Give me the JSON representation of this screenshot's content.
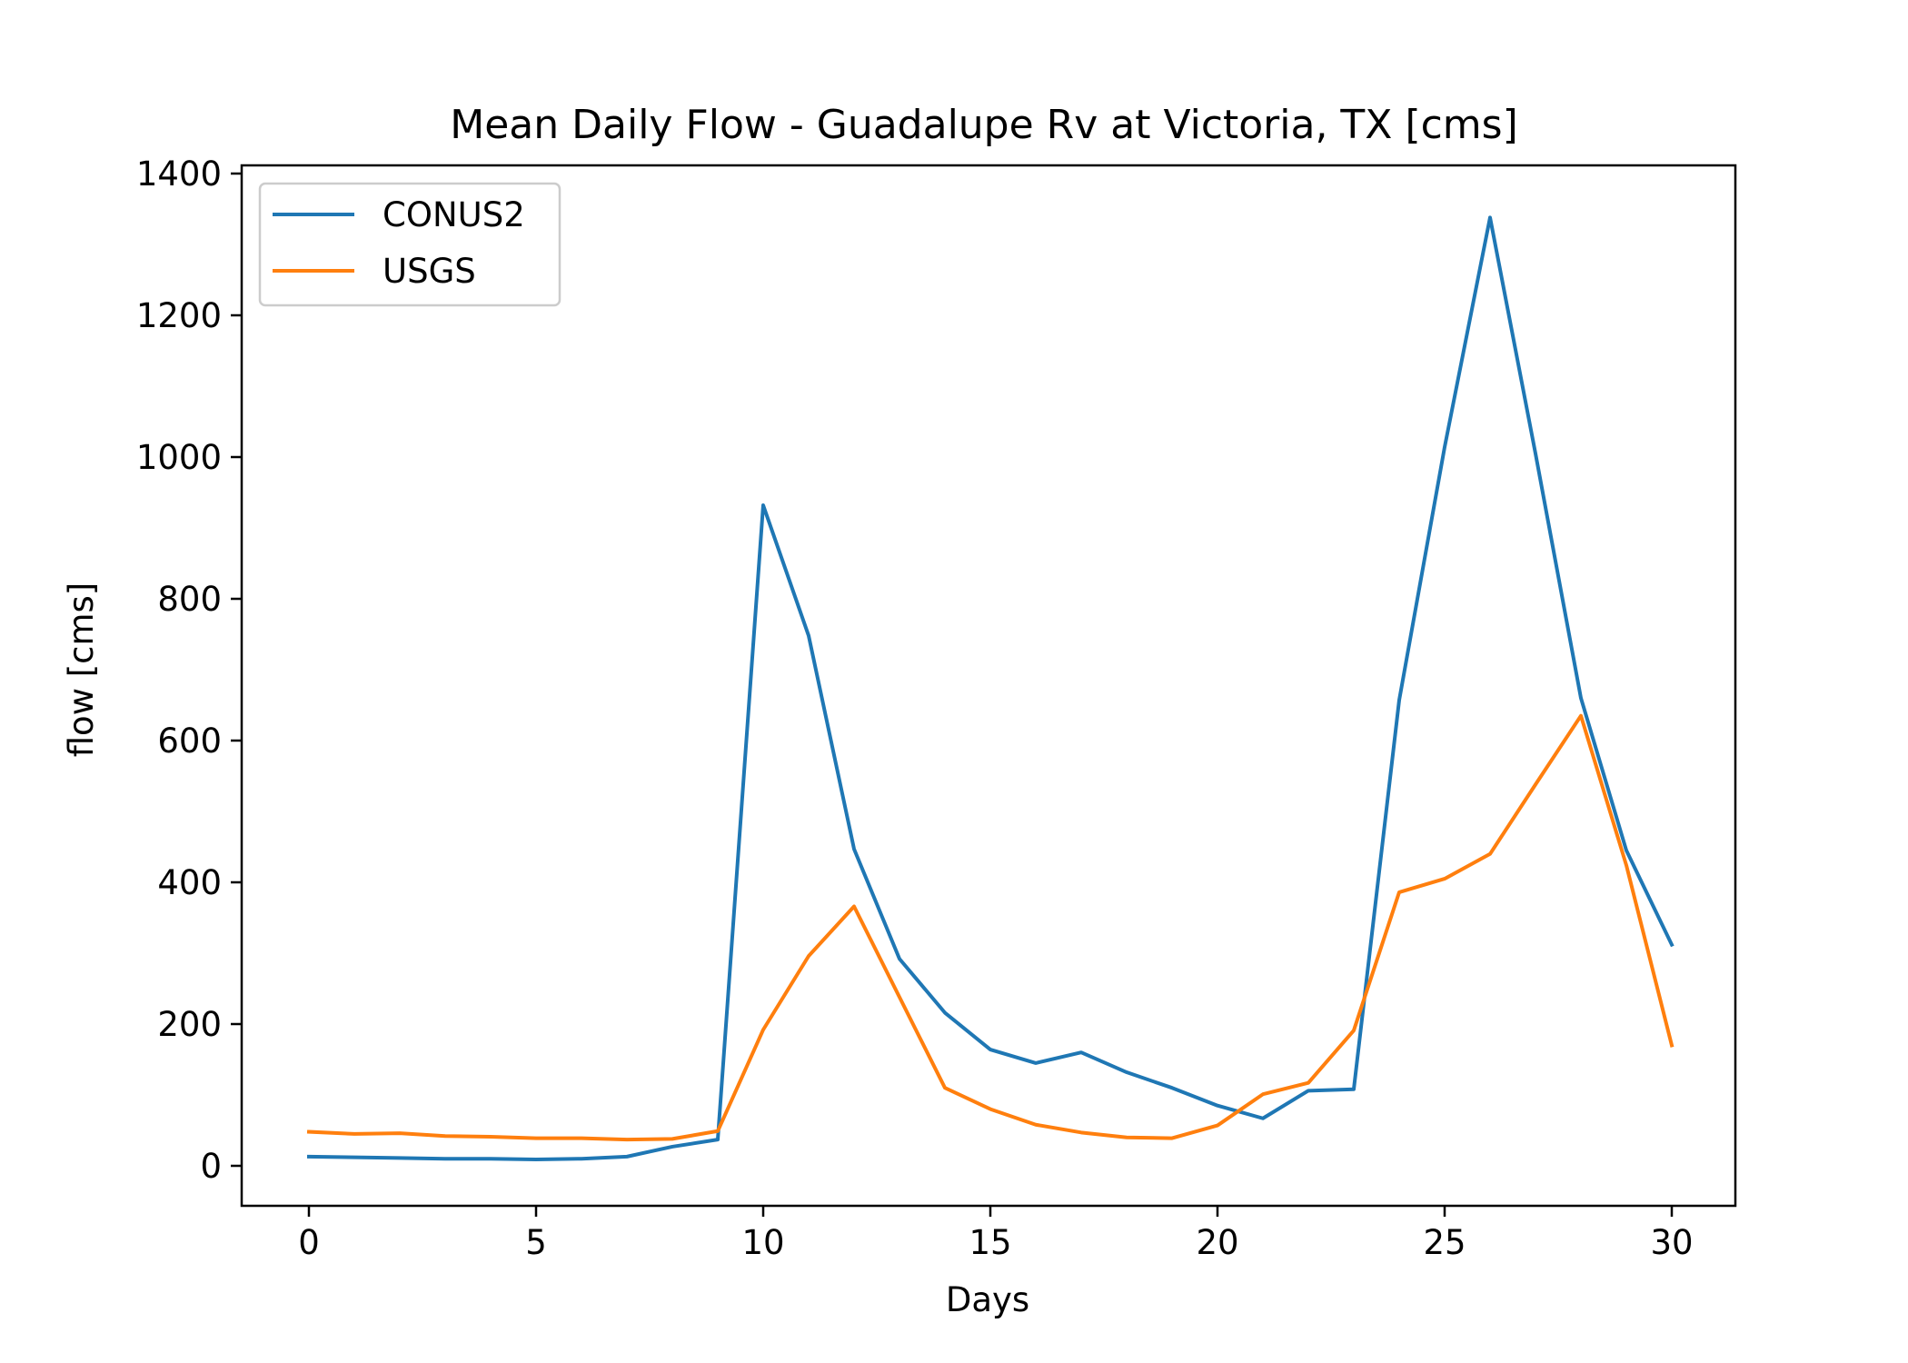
{
  "chart_data": {
    "type": "line",
    "title": "Mean Daily Flow - Guadalupe Rv at Victoria, TX [cms]",
    "xlabel": "Days",
    "ylabel": "flow [cms]",
    "xlim": [
      -1.5,
      31.5
    ],
    "ylim": [
      -57,
      1400
    ],
    "xticks": [
      0,
      5,
      10,
      15,
      20,
      25,
      30
    ],
    "yticks": [
      0,
      200,
      400,
      600,
      800,
      1000,
      1200,
      1400
    ],
    "grid": false,
    "legend_position": "upper-left",
    "x": [
      0,
      1,
      2,
      3,
      4,
      5,
      6,
      7,
      8,
      9,
      10,
      11,
      12,
      13,
      14,
      15,
      16,
      17,
      18,
      19,
      20,
      21,
      22,
      23,
      24,
      25,
      26,
      27,
      28,
      29,
      30
    ],
    "series": [
      {
        "name": "CONUS2",
        "color": "#1f77b4",
        "values": [
          13,
          12,
          11,
          10,
          10,
          9,
          10,
          13,
          27,
          37,
          932,
          748,
          447,
          292,
          216,
          164,
          145,
          160,
          132,
          110,
          85,
          67,
          106,
          108,
          657,
          1014,
          1338,
          1005,
          660,
          445,
          312
        ]
      },
      {
        "name": "USGS",
        "color": "#ff7f0e",
        "values": [
          48,
          45,
          46,
          42,
          41,
          39,
          39,
          37,
          38,
          49,
          192,
          296,
          366,
          238,
          110,
          80,
          58,
          47,
          40,
          39,
          57,
          101,
          117,
          191,
          386,
          405,
          440,
          538,
          635,
          424,
          170
        ]
      }
    ]
  }
}
